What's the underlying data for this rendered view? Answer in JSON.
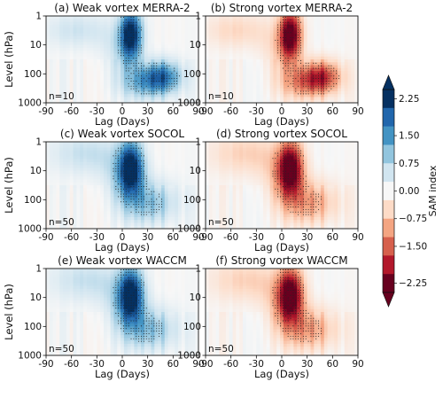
{
  "chart_data": {
    "type": "heatmap",
    "panels": [
      {
        "title": "(a) Weak vortex MERRA-2",
        "sign": -1,
        "n_label": "n=10",
        "model": "merra"
      },
      {
        "title": "(b) Strong vortex MERRA-2",
        "sign": 1,
        "n_label": "n=10",
        "model": "merra"
      },
      {
        "title": "(c) Weak vortex SOCOL",
        "sign": -1,
        "n_label": "n=50",
        "model": "model"
      },
      {
        "title": "(d) Strong vortex SOCOL",
        "sign": 1,
        "n_label": "n=50",
        "model": "model"
      },
      {
        "title": "(e) Weak vortex WACCM",
        "sign": -1,
        "n_label": "n=50",
        "model": "model"
      },
      {
        "title": "(f) Strong vortex WACCM",
        "sign": 1,
        "n_label": "n=50",
        "model": "model"
      }
    ],
    "x": {
      "label": "Lag (Days)",
      "ticks": [
        -90,
        -60,
        -30,
        0,
        30,
        60,
        90
      ],
      "tick_labels": [
        "-90",
        "-60",
        "-30",
        "0",
        "30",
        "60",
        "90"
      ],
      "range": [
        -90,
        90
      ]
    },
    "y": {
      "label": "Level (hPa)",
      "scale": "log",
      "reversed": true,
      "ticks": [
        1,
        10,
        100,
        1000
      ],
      "tick_labels": [
        "1",
        "10",
        "100",
        "1000"
      ],
      "range": [
        1,
        1000
      ]
    },
    "colorbar": {
      "label": "SAM index",
      "range": [
        -2.25,
        2.25
      ],
      "ticks": [
        2.25,
        1.5,
        0.75,
        0.0,
        -0.75,
        -1.5,
        -2.25
      ],
      "tick_labels": [
        "2.25",
        "1.50",
        "0.75",
        "0.00",
        "−0.75",
        "−1.50",
        "−2.25"
      ],
      "extend": "both",
      "colors": [
        "#67001f",
        "#b2182b",
        "#d6604d",
        "#f4a582",
        "#fddbc7",
        "#f7f7f7",
        "#d1e5f0",
        "#92c5de",
        "#4393c3",
        "#2166ac",
        "#053061"
      ]
    },
    "stippling": "significant values"
  }
}
